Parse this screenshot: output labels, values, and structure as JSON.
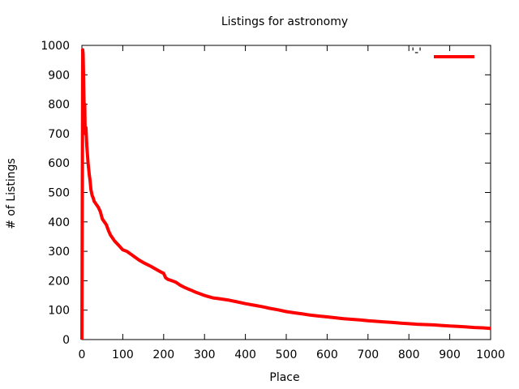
{
  "chart_data": {
    "type": "line",
    "title": "Listings for astronomy",
    "xlabel": "Place",
    "ylabel": "# of Listings",
    "xlim": [
      0,
      1000
    ],
    "ylim": [
      0,
      1000
    ],
    "xticks": [
      0,
      100,
      200,
      300,
      400,
      500,
      600,
      700,
      800,
      900,
      1000
    ],
    "yticks": [
      0,
      100,
      200,
      300,
      400,
      500,
      600,
      700,
      800,
      900,
      1000
    ],
    "grid": false,
    "legend": {
      "placement": "top-right",
      "label": "'-'"
    },
    "series": [
      {
        "color": "#ff0000",
        "x": [
          0,
          1,
          2,
          3,
          4,
          5,
          6,
          7,
          8,
          10,
          12,
          15,
          18,
          20,
          22,
          25,
          28,
          30,
          35,
          40,
          45,
          50,
          55,
          60,
          65,
          70,
          75,
          80,
          90,
          100,
          110,
          120,
          130,
          140,
          150,
          160,
          170,
          180,
          190,
          200,
          205,
          210,
          220,
          230,
          240,
          250,
          260,
          270,
          280,
          290,
          300,
          320,
          340,
          360,
          380,
          400,
          420,
          440,
          460,
          480,
          500,
          520,
          540,
          560,
          580,
          600,
          620,
          640,
          660,
          680,
          700,
          720,
          740,
          760,
          780,
          800,
          820,
          840,
          860,
          880,
          900,
          920,
          940,
          960,
          980,
          1000
        ],
        "y": [
          0,
          500,
          985,
          970,
          900,
          820,
          760,
          800,
          700,
          720,
          660,
          600,
          560,
          540,
          510,
          490,
          480,
          470,
          460,
          450,
          435,
          410,
          400,
          390,
          370,
          355,
          345,
          335,
          320,
          305,
          300,
          290,
          280,
          270,
          262,
          255,
          248,
          240,
          232,
          225,
          210,
          205,
          200,
          195,
          185,
          178,
          172,
          166,
          160,
          155,
          150,
          142,
          138,
          134,
          128,
          122,
          117,
          112,
          106,
          101,
          95,
          91,
          87,
          83,
          80,
          77,
          74,
          71,
          69,
          67,
          64,
          62,
          60,
          58,
          56,
          54,
          52,
          51,
          50,
          48,
          46,
          45,
          43,
          41,
          40,
          38
        ]
      }
    ]
  }
}
